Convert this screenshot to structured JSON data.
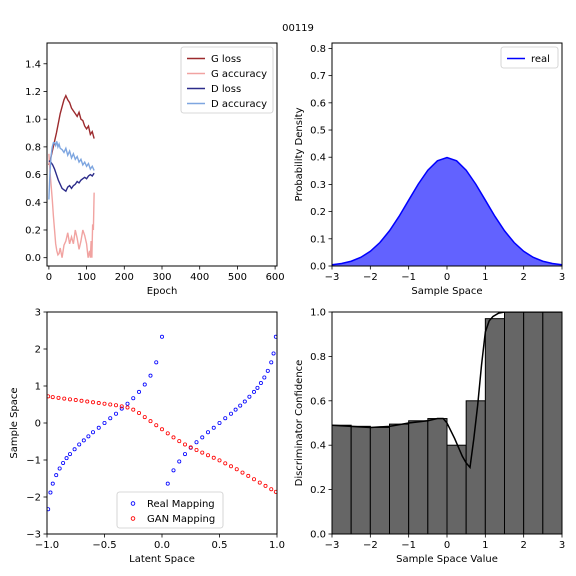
{
  "figure": {
    "title": "00119"
  },
  "chart_data": [
    {
      "id": "training",
      "type": "line",
      "title": "",
      "xlabel": "Epoch",
      "ylabel": "",
      "xlim": [
        -5,
        605
      ],
      "ylim": [
        -0.06,
        1.55
      ],
      "xticks": [
        0,
        100,
        200,
        300,
        400,
        500,
        600
      ],
      "xtick_labels": [
        "0",
        "100",
        "200",
        "300",
        "400",
        "500",
        "600"
      ],
      "yticks": [
        0.0,
        0.2,
        0.4,
        0.6,
        0.8,
        1.0,
        1.2,
        1.4
      ],
      "ytick_labels": [
        "0.0",
        "0.2",
        "0.4",
        "0.6",
        "0.8",
        "1.0",
        "1.2",
        "1.4"
      ],
      "legend": "top-right",
      "series": [
        {
          "name": "G loss",
          "color": "#9c2a2d",
          "x": [
            0,
            5,
            10,
            15,
            20,
            25,
            30,
            35,
            40,
            45,
            50,
            55,
            60,
            65,
            70,
            75,
            80,
            85,
            90,
            95,
            100,
            105,
            110,
            115,
            120
          ],
          "y": [
            0.67,
            0.72,
            0.78,
            0.84,
            0.9,
            0.97,
            1.04,
            1.09,
            1.14,
            1.17,
            1.14,
            1.12,
            1.08,
            1.06,
            1.04,
            1.02,
            1.05,
            1.0,
            0.99,
            0.95,
            0.93,
            0.95,
            0.89,
            0.91,
            0.86
          ]
        },
        {
          "name": "G accuracy",
          "color": "#f1a3a1",
          "x": [
            0,
            3,
            6,
            9,
            12,
            15,
            18,
            21,
            24,
            27,
            30,
            35,
            40,
            45,
            50,
            55,
            60,
            65,
            70,
            75,
            80,
            85,
            90,
            95,
            100,
            104,
            108,
            110,
            112,
            114,
            116,
            118,
            120
          ],
          "y": [
            0.75,
            0.62,
            0.52,
            0.42,
            0.3,
            0.2,
            0.1,
            0.05,
            0.02,
            0.03,
            0.07,
            0.0,
            0.09,
            0.12,
            0.18,
            0.1,
            0.15,
            0.1,
            0.2,
            0.14,
            0.06,
            0.12,
            0.2,
            0.16,
            0.1,
            0.0,
            0.05,
            0.0,
            0.12,
            0.0,
            0.24,
            0.2,
            0.47
          ]
        },
        {
          "name": "D loss",
          "color": "#2c2c8a",
          "x": [
            0,
            5,
            10,
            15,
            20,
            25,
            30,
            35,
            40,
            45,
            50,
            55,
            60,
            65,
            70,
            75,
            80,
            85,
            90,
            95,
            100,
            105,
            110,
            115,
            120
          ],
          "y": [
            0.7,
            0.69,
            0.67,
            0.64,
            0.6,
            0.56,
            0.53,
            0.5,
            0.49,
            0.48,
            0.51,
            0.52,
            0.5,
            0.52,
            0.53,
            0.55,
            0.54,
            0.56,
            0.57,
            0.58,
            0.57,
            0.59,
            0.6,
            0.59,
            0.61
          ]
        },
        {
          "name": "D accuracy",
          "color": "#7ea6e0",
          "x": [
            0,
            3,
            6,
            9,
            12,
            15,
            18,
            21,
            24,
            27,
            30,
            35,
            40,
            45,
            50,
            55,
            60,
            65,
            70,
            75,
            80,
            85,
            90,
            95,
            100,
            105,
            110,
            115,
            120
          ],
          "y": [
            0.42,
            0.62,
            0.74,
            0.8,
            0.83,
            0.83,
            0.81,
            0.84,
            0.8,
            0.82,
            0.79,
            0.78,
            0.76,
            0.79,
            0.74,
            0.77,
            0.72,
            0.75,
            0.71,
            0.73,
            0.69,
            0.71,
            0.67,
            0.69,
            0.66,
            0.68,
            0.64,
            0.66,
            0.63
          ]
        }
      ]
    },
    {
      "id": "density",
      "type": "area",
      "title": "",
      "xlabel": "Sample Space",
      "ylabel": "Probability Density",
      "xlim": [
        -3,
        3
      ],
      "ylim": [
        0,
        0.82
      ],
      "xticks": [
        -3,
        -2,
        -1,
        0,
        1,
        2,
        3
      ],
      "xtick_labels": [
        "−3",
        "−2",
        "−1",
        "0",
        "1",
        "2",
        "3"
      ],
      "yticks": [
        0.0,
        0.1,
        0.2,
        0.3,
        0.4,
        0.5,
        0.6,
        0.7,
        0.8
      ],
      "ytick_labels": [
        "0.0",
        "0.1",
        "0.2",
        "0.3",
        "0.4",
        "0.5",
        "0.6",
        "0.7",
        "0.8"
      ],
      "legend": "top-right",
      "series": [
        {
          "name": "real",
          "color": "#0000ff",
          "fill": "#6262ff",
          "x": [
            -3.0,
            -2.75,
            -2.5,
            -2.25,
            -2.0,
            -1.75,
            -1.5,
            -1.25,
            -1.0,
            -0.75,
            -0.5,
            -0.25,
            0.0,
            0.25,
            0.5,
            0.75,
            1.0,
            1.25,
            1.5,
            1.75,
            2.0,
            2.25,
            2.5,
            2.75,
            3.0
          ],
          "y": [
            0.0044,
            0.0091,
            0.0175,
            0.0317,
            0.054,
            0.0863,
            0.1295,
            0.1826,
            0.242,
            0.3011,
            0.3521,
            0.3867,
            0.3989,
            0.3867,
            0.3521,
            0.3011,
            0.242,
            0.1826,
            0.1295,
            0.0863,
            0.054,
            0.0317,
            0.0175,
            0.0091,
            0.0044
          ]
        }
      ]
    },
    {
      "id": "mapping",
      "type": "scatter",
      "title": "",
      "xlabel": "Latent Space",
      "ylabel": "Sample Space",
      "xlim": [
        -1.0,
        1.0
      ],
      "ylim": [
        -3,
        3
      ],
      "xticks": [
        -1.0,
        -0.5,
        0.0,
        0.5,
        1.0
      ],
      "xtick_labels": [
        "−1.0",
        "−0.5",
        "0.0",
        "0.5",
        "1.0"
      ],
      "yticks": [
        -3,
        -2,
        -1,
        0,
        1,
        2,
        3
      ],
      "ytick_labels": [
        "−3",
        "−2",
        "−1",
        "0",
        "1",
        "2",
        "3"
      ],
      "legend": "bottom-center",
      "series": [
        {
          "name": "Real Mapping",
          "color": "#0000ff",
          "x": [
            -0.99,
            -0.97,
            -0.95,
            -0.92,
            -0.89,
            -0.86,
            -0.83,
            -0.8,
            -0.76,
            -0.72,
            -0.68,
            -0.64,
            -0.6,
            -0.55,
            -0.5,
            -0.45,
            -0.4,
            -0.35,
            -0.3,
            -0.25,
            -0.2,
            -0.15,
            -0.1,
            -0.05,
            0.0,
            0.05,
            0.1,
            0.15,
            0.2,
            0.25,
            0.3,
            0.35,
            0.4,
            0.45,
            0.5,
            0.55,
            0.6,
            0.64,
            0.68,
            0.72,
            0.76,
            0.8,
            0.83,
            0.86,
            0.89,
            0.92,
            0.95,
            0.97,
            0.99
          ],
          "y": [
            -2.33,
            -1.88,
            -1.64,
            -1.41,
            -1.23,
            -1.08,
            -0.95,
            -0.84,
            -0.71,
            -0.58,
            -0.47,
            -0.36,
            -0.25,
            -0.13,
            0.0,
            0.13,
            0.25,
            0.39,
            0.52,
            0.67,
            0.84,
            1.04,
            1.28,
            1.64,
            2.33,
            -1.64,
            -1.28,
            -1.04,
            -0.84,
            -0.67,
            -0.52,
            -0.39,
            -0.25,
            -0.13,
            0.0,
            0.13,
            0.25,
            0.36,
            0.47,
            0.58,
            0.71,
            0.84,
            0.95,
            1.08,
            1.23,
            1.41,
            1.64,
            1.88,
            2.33
          ]
        },
        {
          "name": "GAN Mapping",
          "color": "#ff0000",
          "x": [
            -0.99,
            -0.95,
            -0.9,
            -0.85,
            -0.8,
            -0.75,
            -0.7,
            -0.65,
            -0.6,
            -0.55,
            -0.5,
            -0.45,
            -0.4,
            -0.35,
            -0.3,
            -0.25,
            -0.2,
            -0.15,
            -0.1,
            -0.05,
            0.0,
            0.05,
            0.1,
            0.15,
            0.2,
            0.25,
            0.3,
            0.35,
            0.4,
            0.45,
            0.5,
            0.55,
            0.6,
            0.65,
            0.7,
            0.75,
            0.8,
            0.85,
            0.9,
            0.95,
            0.99
          ],
          "y": [
            0.72,
            0.7,
            0.68,
            0.66,
            0.64,
            0.62,
            0.6,
            0.58,
            0.56,
            0.54,
            0.52,
            0.5,
            0.48,
            0.45,
            0.42,
            0.36,
            0.27,
            0.16,
            0.05,
            -0.06,
            -0.17,
            -0.28,
            -0.39,
            -0.49,
            -0.58,
            -0.66,
            -0.73,
            -0.8,
            -0.87,
            -0.94,
            -1.01,
            -1.09,
            -1.17,
            -1.25,
            -1.34,
            -1.43,
            -1.52,
            -1.61,
            -1.7,
            -1.79,
            -1.86
          ]
        }
      ]
    },
    {
      "id": "discriminator",
      "type": "bar",
      "title": "",
      "xlabel": "Sample Space Value",
      "ylabel": "Discriminator Confidence",
      "xlim": [
        -3,
        3
      ],
      "ylim": [
        0,
        1.0
      ],
      "xticks": [
        -3,
        -2,
        -1,
        0,
        1,
        2,
        3
      ],
      "xtick_labels": [
        "−3",
        "−2",
        "−1",
        "0",
        "1",
        "2",
        "3"
      ],
      "yticks": [
        0.0,
        0.2,
        0.4,
        0.6,
        0.8,
        1.0
      ],
      "ytick_labels": [
        "0.0",
        "0.2",
        "0.4",
        "0.6",
        "0.8",
        "1.0"
      ],
      "legend": "none",
      "bar_fill": "#666666",
      "curve_color": "#000000",
      "bins": [
        {
          "x0": -3.0,
          "x1": -2.5,
          "value": 0.49
        },
        {
          "x0": -2.5,
          "x1": -2.0,
          "value": 0.485
        },
        {
          "x0": -2.0,
          "x1": -1.5,
          "value": 0.48
        },
        {
          "x0": -1.5,
          "x1": -1.0,
          "value": 0.495
        },
        {
          "x0": -1.0,
          "x1": -0.5,
          "value": 0.51
        },
        {
          "x0": -0.5,
          "x1": 0.0,
          "value": 0.52
        },
        {
          "x0": 0.0,
          "x1": 0.5,
          "value": 0.4
        },
        {
          "x0": 0.5,
          "x1": 1.0,
          "value": 0.6
        },
        {
          "x0": 1.0,
          "x1": 1.5,
          "value": 0.97
        },
        {
          "x0": 1.5,
          "x1": 2.0,
          "value": 1.0
        },
        {
          "x0": 2.0,
          "x1": 2.5,
          "value": 1.0
        },
        {
          "x0": 2.5,
          "x1": 3.0,
          "value": 1.0
        }
      ],
      "curve": {
        "x": [
          -3.0,
          -2.5,
          -2.0,
          -1.5,
          -1.0,
          -0.5,
          -0.25,
          -0.1,
          0.0,
          0.2,
          0.4,
          0.5,
          0.6,
          0.7,
          0.8,
          0.9,
          1.0,
          1.1,
          1.2,
          1.35,
          1.5,
          1.7,
          2.0,
          2.5,
          3.0
        ],
        "y": [
          0.49,
          0.485,
          0.48,
          0.485,
          0.5,
          0.51,
          0.52,
          0.52,
          0.5,
          0.43,
          0.35,
          0.32,
          0.3,
          0.43,
          0.58,
          0.76,
          0.91,
          0.96,
          0.98,
          0.995,
          1.0,
          1.0,
          1.0,
          1.0,
          1.0
        ]
      }
    }
  ]
}
